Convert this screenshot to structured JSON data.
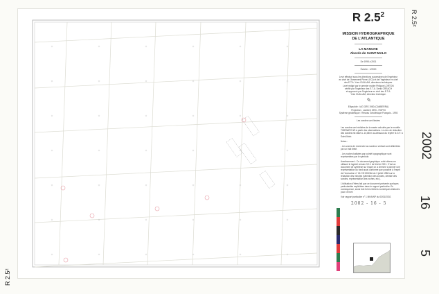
{
  "sheet": {
    "chart_number": "R 2.5",
    "chart_number_sup": "2",
    "side_number": "R 2.5²",
    "corner_number": "R 2.5²",
    "stamp_year": "2002",
    "stamp_day": "16",
    "stamp_month": "5"
  },
  "cartouche": {
    "organisation_line1": "MISSION HYDROGRAPHIQUE",
    "organisation_line2": "DE L'ATLANTIQUE",
    "region": "LA MANCHE",
    "area": "Abords de SAINT-MALO",
    "period": "De 1998 à 2001",
    "scale": "Échelle : 1/2000",
    "credits": [
      "Levé effectué sous les directions successives de l'Ingénieur",
      "en chef de l'Armement Pierre LECA et de l'Ingénieur en chef",
      "des E.T.A. Yves GUILLAM, directeurs techniques.",
      "Levé rédigé par le premier maître Philippe LORTON",
      "vérifié par l'Ingénieur des E.T.A. Denis CREACH",
      "et approuvé par l'Ingénieur en chef des E.T.A.",
      "Yves GUILLAM, directeur technique."
    ],
    "geodesy": [
      "Ellipsoïde : IAG GRS 1980 (CANBERRA)",
      "Projection : Lambert 1993 - RGF93",
      "Système géodésique : Réseau Géodésique Français - 1993"
    ],
    "soundings_note": "Les sondes sont lissées"
  },
  "notes": {
    "paragraphs": [
      "Les sondes sont réduites de la marée calculée par le modèle TIDEWATCH/3 à partir des observations. Le zéro de réduction des sondes est situé à -10,88 m au-dessous du repère N.G.F. à Saint-Malo.",
      "Notes :",
      "- Les zones de recherche au sondeur vertical sont délimitées par un trait tireté.",
      "- Les roches balisées par pointé topographique sont représentées par le symbole.",
      "Avertissement : Ce document graphique a été obtenu en utilisant le logiciel version 3.0.1 de février 2001. C'est un document de synthèse sur lequel on a cherché à donner une représentation du fond aussi conforme que possible à l'esprit de l'instruction n° 612 SHOM/NA du 3 juillet 1988 sur la rédaction des minutes (sélection des sondes, densité des sondes, représentation des roches, etc.).",
      "L'utilisation d'êtres fait que ce document présente quelques particularités explicitées dans le rapport particulier. En conséquence, seuls font foi les fichiers numériques élaborés pour ce levé.",
      "Voir rapport particulier n° 1 MHA/NP du 03/01/2002."
    ],
    "handwritten_date": "2002 - 16 - 5"
  },
  "legend": {
    "colors": [
      "#2e7d4f",
      "#e23b3b",
      "#2a2a2a",
      "#2b2b6e",
      "#e23b3b",
      "#2e7d4f",
      "#e0407a"
    ]
  }
}
